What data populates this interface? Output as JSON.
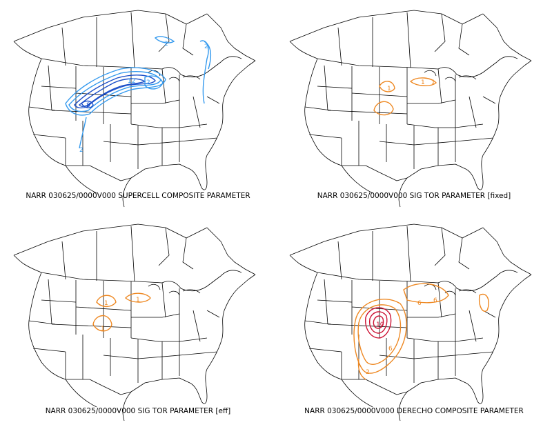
{
  "panels": [
    {
      "caption": "NARR 030625/0000V000 SUPERCELL COMPOSITE PARAMETER",
      "contour_color": "#3399ee",
      "contour_color_strong": "#1a4ec8",
      "contour_labels": [
        "2",
        "12",
        "8",
        "2",
        "2",
        "2"
      ]
    },
    {
      "caption": "NARR 030625/0000V000 SIG TOR PARAMETER [fixed]",
      "contour_color": "#ee8822",
      "contour_labels": [
        "1",
        "1",
        "1"
      ]
    },
    {
      "caption": "NARR 030625/0000V000 SIG TOR PARAMETER [eff]",
      "contour_color": "#ee8822",
      "contour_labels": [
        "1",
        "1",
        "1"
      ]
    },
    {
      "caption": "NARR 030625/0000V000 DERECHO COMPOSITE PARAMETER",
      "contour_color": "#ee8822",
      "contour_color_strong": "#cc1133",
      "contour_labels": [
        "6",
        "6",
        "2",
        "10",
        "6"
      ]
    }
  ]
}
